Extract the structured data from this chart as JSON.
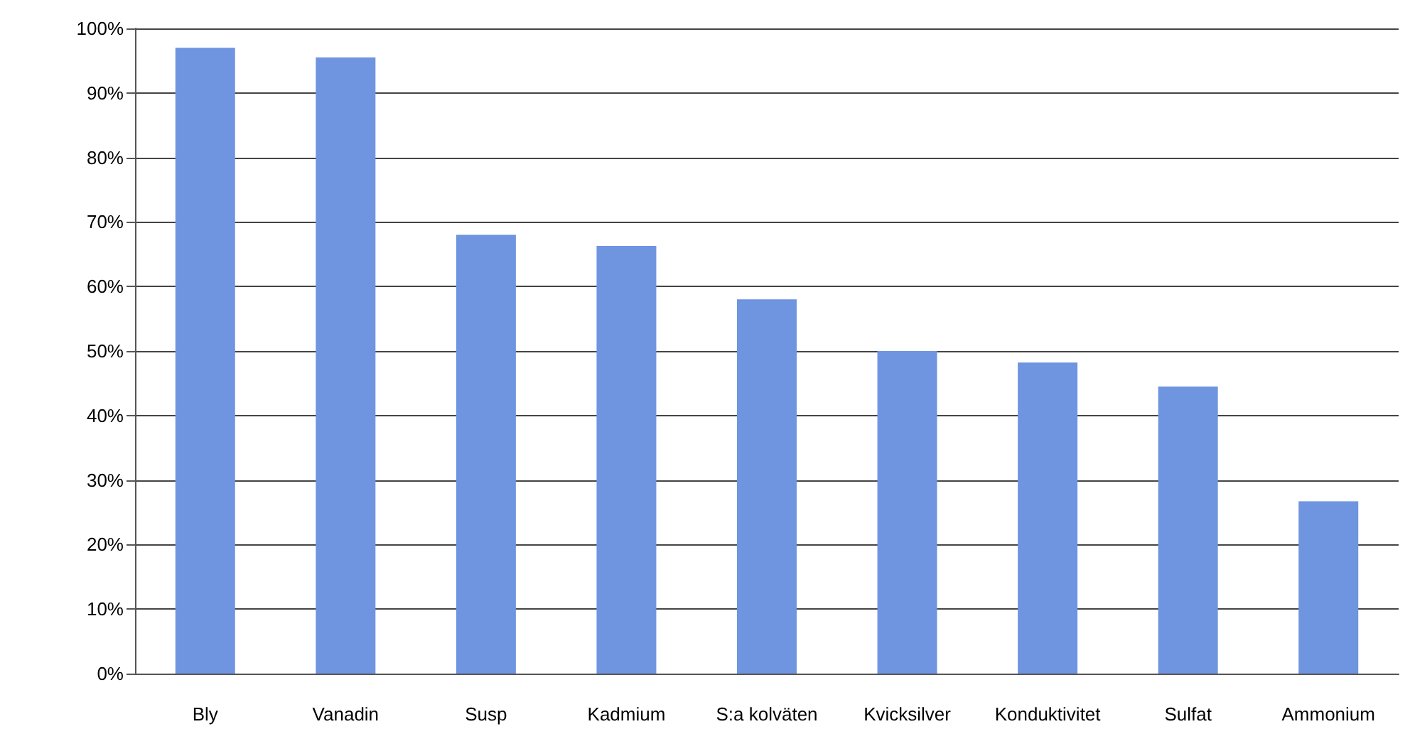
{
  "chart_data": {
    "type": "bar",
    "categories": [
      "Bly",
      "Vanadin",
      "Susp",
      "Kadmium",
      "S:a kolväten",
      "Kvicksilver",
      "Konduktivitet",
      "Sulfat",
      "Ammonium"
    ],
    "values": [
      97,
      95.5,
      68,
      66.3,
      58,
      50,
      48.2,
      44.5,
      26.7
    ],
    "color": "#6f94e0",
    "ylim": [
      0,
      100
    ],
    "yticks": [
      {
        "value": 0,
        "label": "0%"
      },
      {
        "value": 10,
        "label": "10%"
      },
      {
        "value": 20,
        "label": "20%"
      },
      {
        "value": 30,
        "label": "30%"
      },
      {
        "value": 40,
        "label": "40%"
      },
      {
        "value": 50,
        "label": "50%"
      },
      {
        "value": 60,
        "label": "60%"
      },
      {
        "value": 70,
        "label": "70%"
      },
      {
        "value": 80,
        "label": "80%"
      },
      {
        "value": 90,
        "label": "90%"
      },
      {
        "value": 100,
        "label": "100%"
      }
    ],
    "grid": true
  }
}
